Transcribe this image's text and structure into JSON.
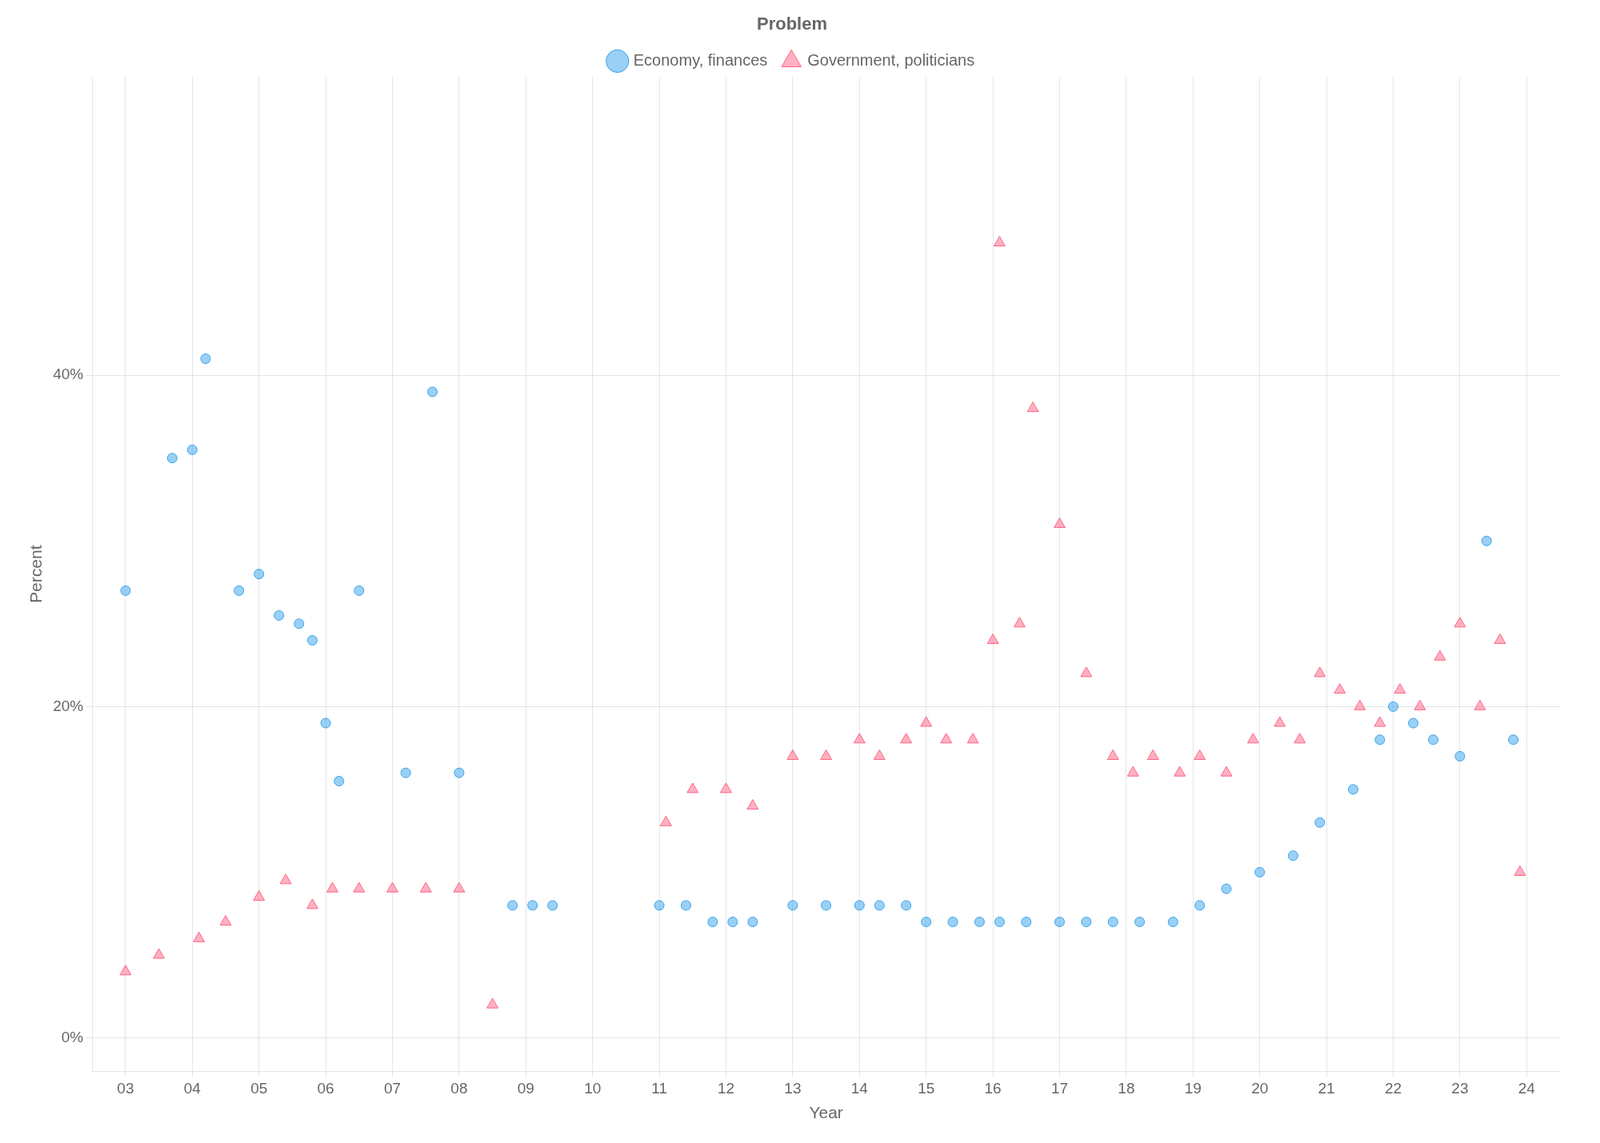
{
  "chart_data": {
    "type": "scatter",
    "xlabel": "Year",
    "ylabel": "Percent",
    "legend_title": "Problem",
    "legend": "top",
    "grid": true,
    "xlim": [
      2.5,
      24.5
    ],
    "ylim": [
      -2,
      58
    ],
    "xticks": [
      {
        "value": 3,
        "label": "03"
      },
      {
        "value": 4,
        "label": "04"
      },
      {
        "value": 5,
        "label": "05"
      },
      {
        "value": 6,
        "label": "06"
      },
      {
        "value": 7,
        "label": "07"
      },
      {
        "value": 8,
        "label": "08"
      },
      {
        "value": 9,
        "label": "09"
      },
      10,
      11,
      12,
      13,
      14,
      15,
      16,
      17,
      18,
      19,
      20,
      21,
      22,
      23,
      24
    ],
    "yticks": [
      {
        "value": 0,
        "label": "0%"
      },
      {
        "value": 20,
        "label": "20%"
      },
      {
        "value": 40,
        "label": "40%"
      }
    ],
    "series": [
      {
        "name": "Economy, finances",
        "marker": "circle",
        "x": [
          3.0,
          3.7,
          4.0,
          4.2,
          4.7,
          5.0,
          5.3,
          5.6,
          5.8,
          6.0,
          6.2,
          6.5,
          7.2,
          7.6,
          8.0,
          8.8,
          9.1,
          9.4,
          11.0,
          11.4,
          11.8,
          12.1,
          12.4,
          13.0,
          13.5,
          14.0,
          14.3,
          14.7,
          15.0,
          15.4,
          15.8,
          16.1,
          16.5,
          17.0,
          17.4,
          17.8,
          18.2,
          18.7,
          19.1,
          19.5,
          20.0,
          20.5,
          20.9,
          21.4,
          21.8,
          22.0,
          22.3,
          22.6,
          23.0,
          23.4,
          23.8
        ],
        "values": [
          27.0,
          35.0,
          35.5,
          41.0,
          27.0,
          28.0,
          25.5,
          25.0,
          24.0,
          19.0,
          15.5,
          27.0,
          16.0,
          39.0,
          16.0,
          8.0,
          8.0,
          8.0,
          8.0,
          8.0,
          7.0,
          7.0,
          7.0,
          8.0,
          8.0,
          8.0,
          8.0,
          8.0,
          7.0,
          7.0,
          7.0,
          7.0,
          7.0,
          7.0,
          7.0,
          7.0,
          7.0,
          7.0,
          8.0,
          9.0,
          10.0,
          11.0,
          13.0,
          15.0,
          18.0,
          20.0,
          19.0,
          18.0,
          17.0,
          30.0,
          18.0
        ]
      },
      {
        "name": "Government, politicians",
        "marker": "triangle",
        "x": [
          3.0,
          3.5,
          4.1,
          4.5,
          5.0,
          5.4,
          5.8,
          6.1,
          6.5,
          7.0,
          7.5,
          8.0,
          8.5,
          11.1,
          11.5,
          12.0,
          12.4,
          13.0,
          13.5,
          14.0,
          14.3,
          14.7,
          15.0,
          15.3,
          15.7,
          16.0,
          16.4,
          16.6,
          17.0,
          17.4,
          17.8,
          18.1,
          18.4,
          18.8,
          19.1,
          19.5,
          19.9,
          20.3,
          20.6,
          20.9,
          21.2,
          21.5,
          21.8,
          22.1,
          22.4,
          22.7,
          23.0,
          23.3,
          23.6,
          23.9,
          16.1
        ],
        "values": [
          4.0,
          5.0,
          6.0,
          7.0,
          8.5,
          9.5,
          8.0,
          9.0,
          9.0,
          9.0,
          9.0,
          9.0,
          2.0,
          13.0,
          15.0,
          15.0,
          14.0,
          17.0,
          17.0,
          18.0,
          17.0,
          18.0,
          19.0,
          18.0,
          18.0,
          24.0,
          25.0,
          38.0,
          31.0,
          22.0,
          17.0,
          16.0,
          17.0,
          16.0,
          17.0,
          16.0,
          18.0,
          19.0,
          18.0,
          22.0,
          21.0,
          20.0,
          19.0,
          21.0,
          20.0,
          23.0,
          25.0,
          20.0,
          24.0,
          10.0,
          48.0
        ]
      }
    ]
  }
}
